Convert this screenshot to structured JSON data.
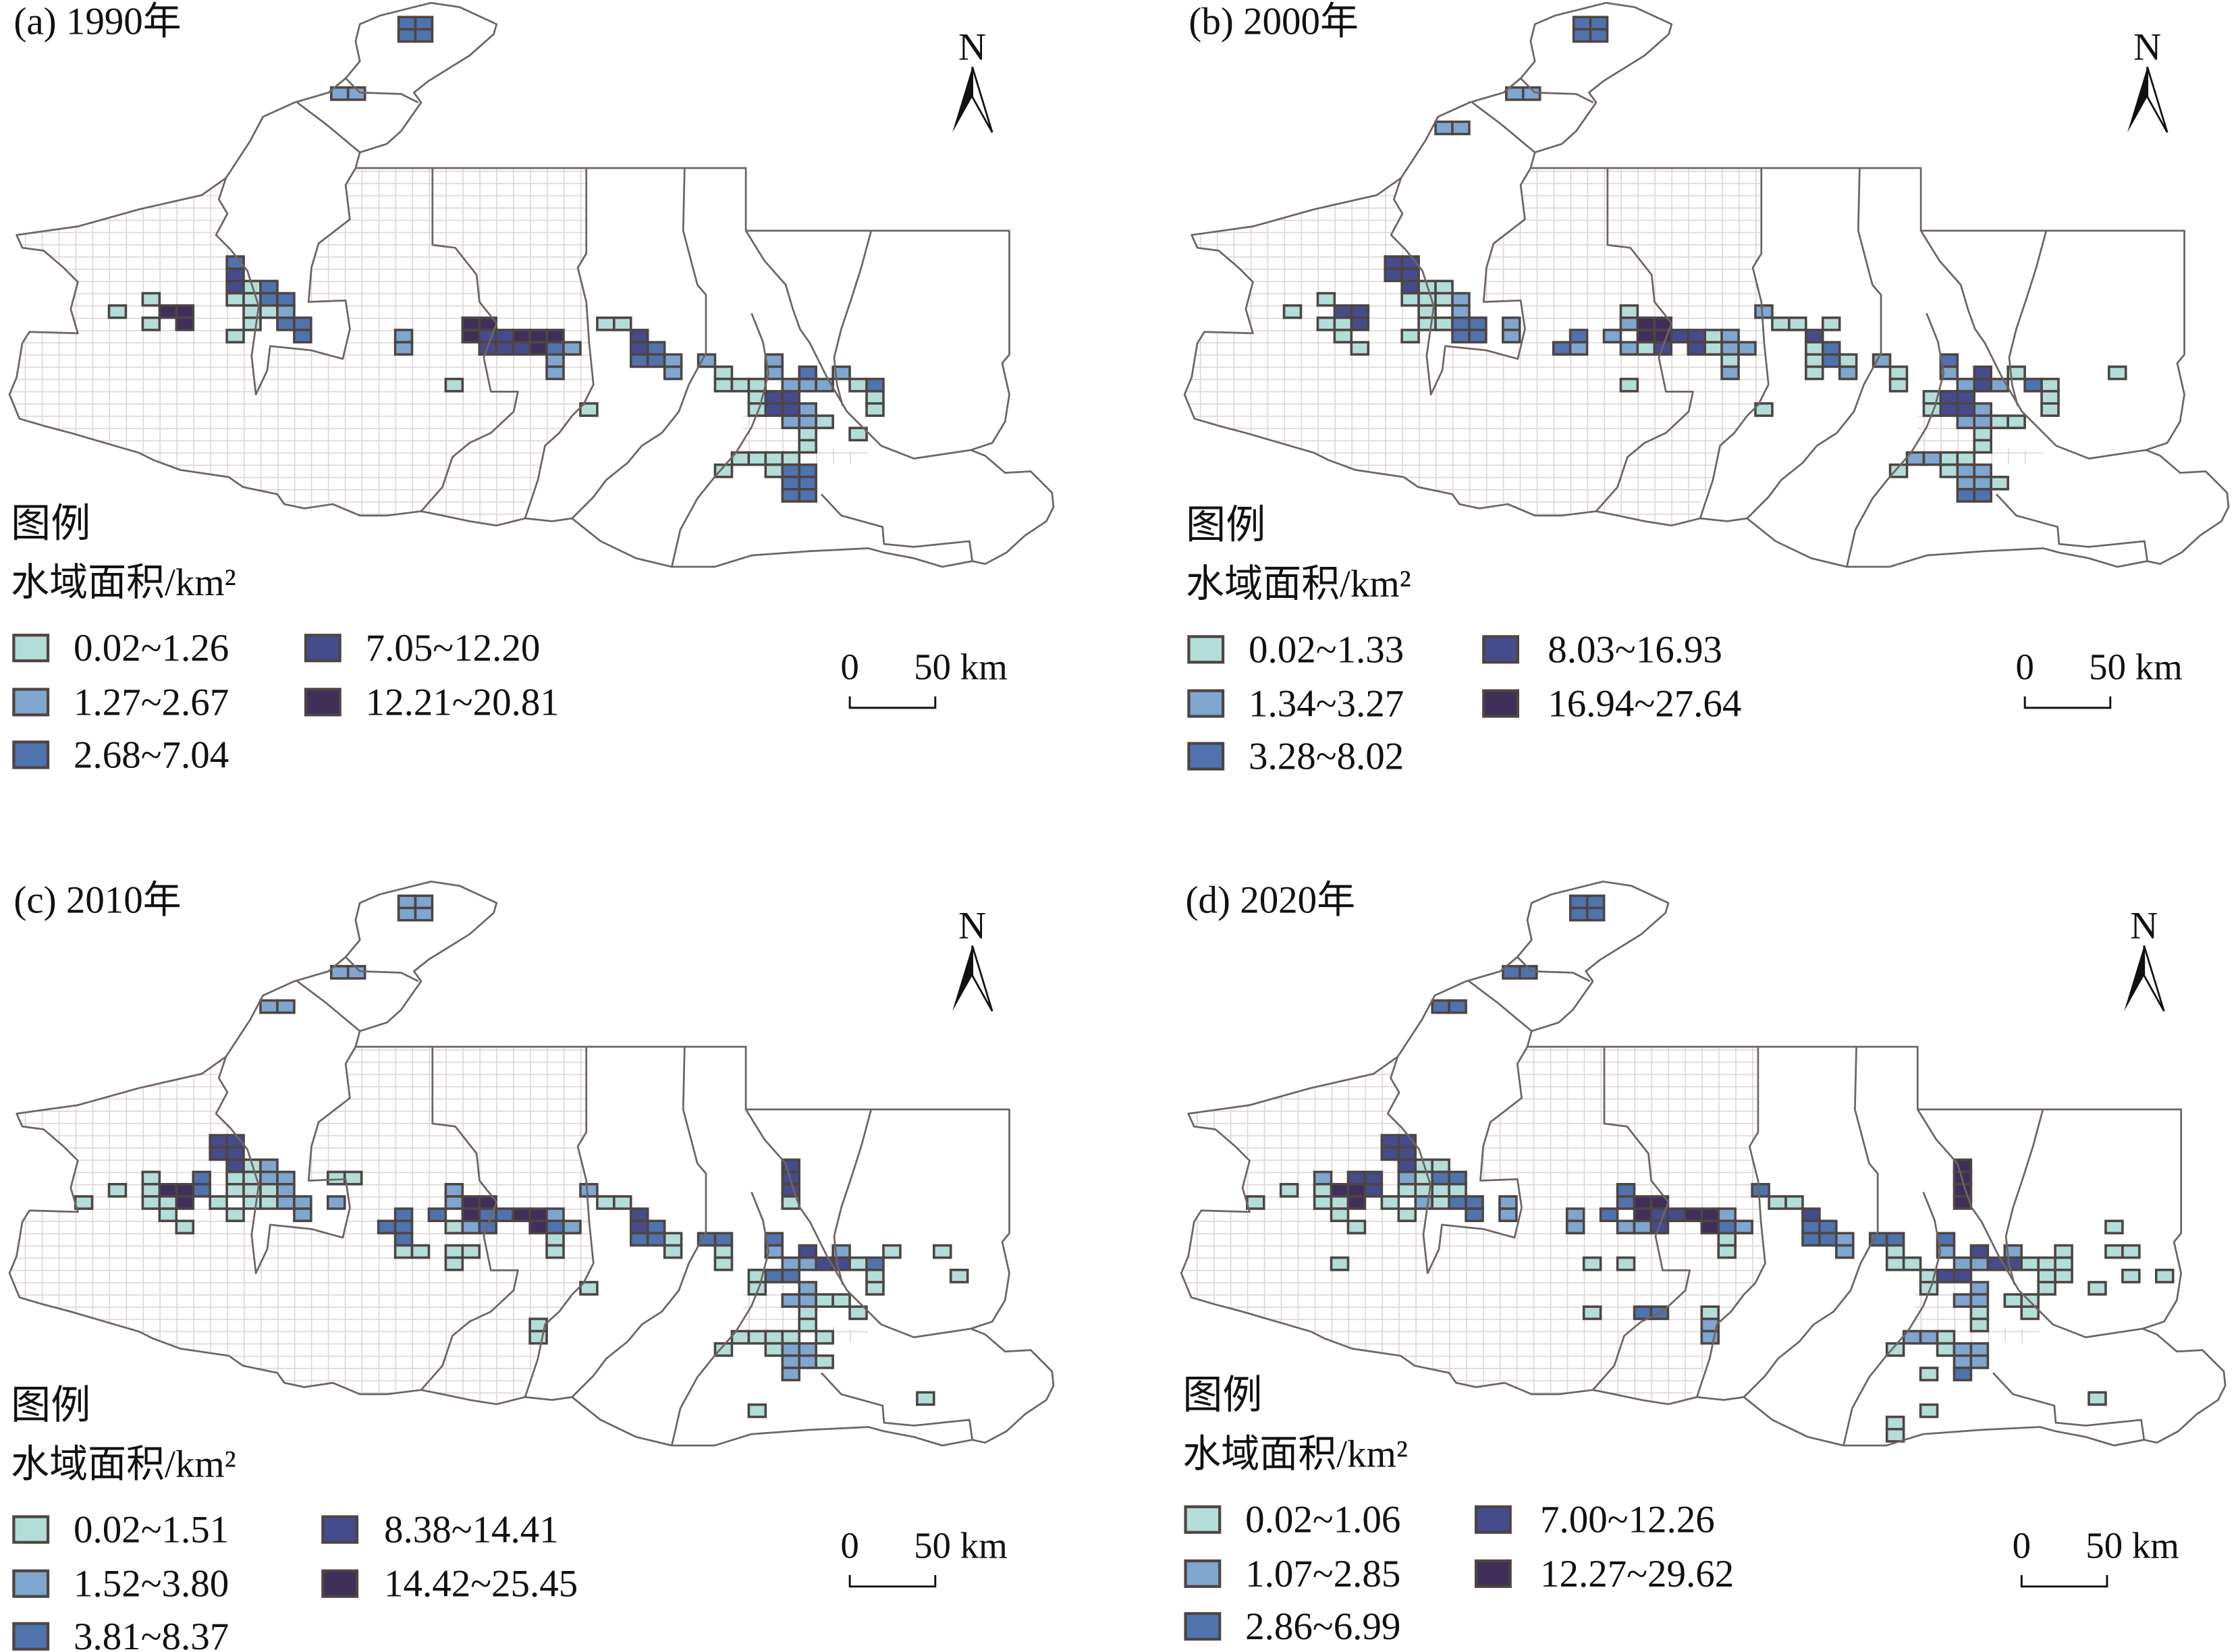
{
  "figure": {
    "panels": [
      {
        "id": "a",
        "title": "(a) 1990年",
        "north_label": "N",
        "scale": {
          "zero": "0",
          "label": "50 km"
        },
        "legend": {
          "title": "图例",
          "subtitle": "水域面积/km²",
          "classes": [
            "0.02~1.26",
            "1.27~2.67",
            "2.68~7.04",
            "7.05~12.20",
            "12.21~20.81"
          ]
        }
      },
      {
        "id": "b",
        "title": "(b) 2000年",
        "north_label": "N",
        "scale": {
          "zero": "0",
          "label": "50 km"
        },
        "legend": {
          "title": "图例",
          "subtitle": "水域面积/km²",
          "classes": [
            "0.02~1.33",
            "1.34~3.27",
            "3.28~8.02",
            "8.03~16.93",
            "16.94~27.64"
          ]
        }
      },
      {
        "id": "c",
        "title": "(c) 2010年",
        "north_label": "N",
        "scale": {
          "zero": "0",
          "label": "50 km"
        },
        "legend": {
          "title": "图例",
          "subtitle": "水域面积/km²",
          "classes": [
            "0.02~1.51",
            "1.52~3.80",
            "3.81~8.37",
            "8.38~14.41",
            "14.42~25.45"
          ]
        }
      },
      {
        "id": "d",
        "title": "(d) 2020年",
        "north_label": "N",
        "scale": {
          "zero": "0",
          "label": "50 km"
        },
        "legend": {
          "title": "图例",
          "subtitle": "水域面积/km²",
          "classes": [
            "0.02~1.06",
            "1.07~2.85",
            "2.86~6.99",
            "7.00~12.26",
            "12.27~29.62"
          ]
        }
      }
    ]
  },
  "colors": {
    "classes": [
      "#b3ddd8",
      "#7fa6cf",
      "#5073ae",
      "#464b8c",
      "#3f2f59"
    ],
    "hatch": "#ddd5d5",
    "border": "#6e6563",
    "cell_stroke": "#4d4543"
  }
}
